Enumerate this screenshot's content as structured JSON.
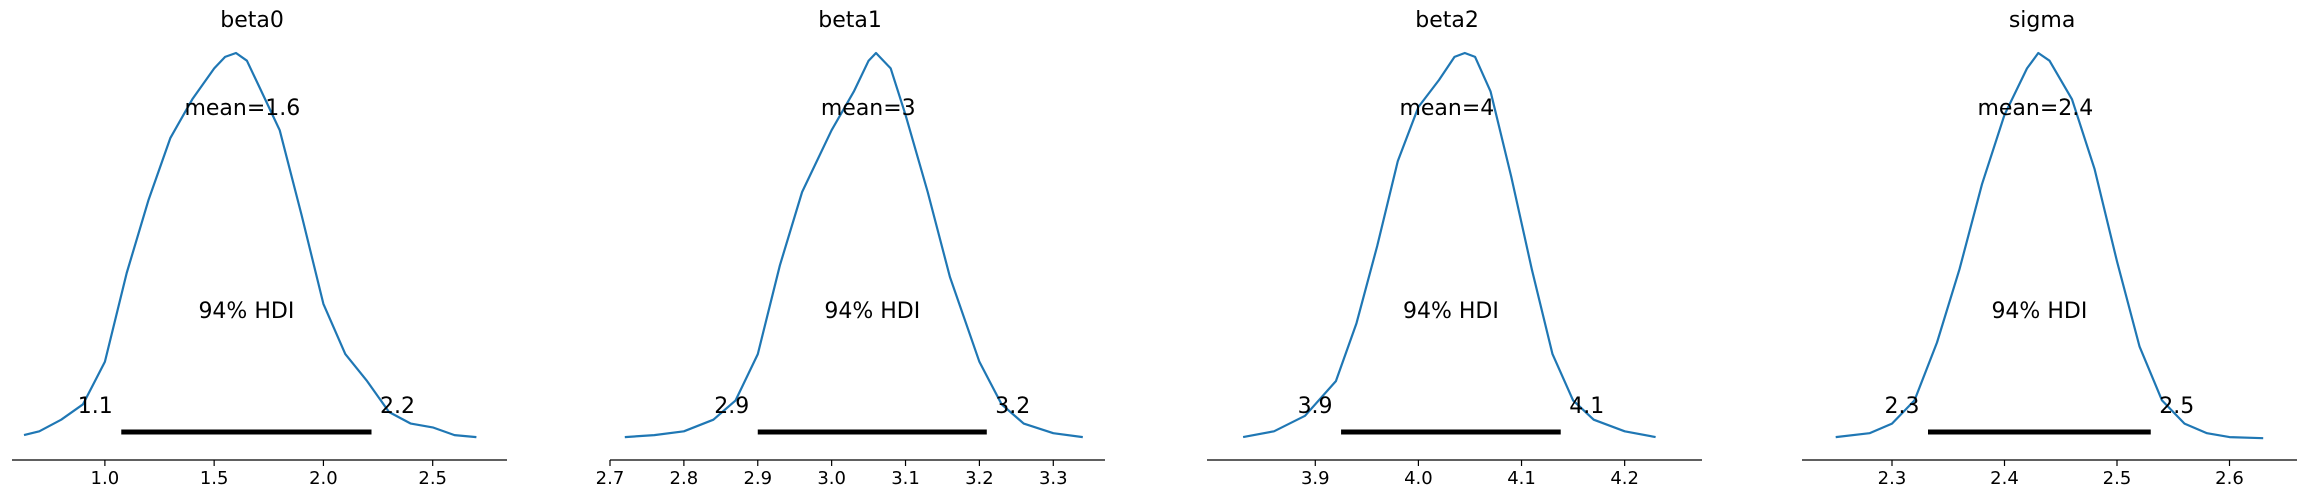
{
  "colors": {
    "kde": "#1f77b4",
    "hdi": "#000000",
    "axis": "#000000"
  },
  "chart_data": [
    {
      "type": "line",
      "title": "beta0",
      "mean_label": "mean=1.6",
      "hdi_label": "94% HDI",
      "hdi_low_label": "1.1",
      "hdi_high_label": "2.2",
      "hdi": [
        1.075,
        2.22
      ],
      "xlim": [
        0.575,
        2.84
      ],
      "xticks": [
        1.0,
        1.5,
        2.0,
        2.5
      ],
      "xtick_labels": [
        "1.0",
        "1.5",
        "2.0",
        "2.5"
      ],
      "density": {
        "x": [
          0.63,
          0.7,
          0.8,
          0.9,
          1.0,
          1.1,
          1.2,
          1.3,
          1.4,
          1.5,
          1.55,
          1.6,
          1.65,
          1.7,
          1.8,
          1.9,
          2.0,
          2.1,
          2.2,
          2.3,
          2.4,
          2.5,
          2.6,
          2.7
        ],
        "y": [
          0.01,
          0.02,
          0.05,
          0.09,
          0.2,
          0.43,
          0.62,
          0.78,
          0.88,
          0.96,
          0.99,
          1.0,
          0.98,
          0.92,
          0.8,
          0.58,
          0.35,
          0.22,
          0.15,
          0.07,
          0.04,
          0.03,
          0.01,
          0.005
        ]
      }
    },
    {
      "type": "line",
      "title": "beta1",
      "mean_label": "mean=3",
      "hdi_label": "94% HDI",
      "hdi_low_label": "2.9",
      "hdi_high_label": "3.2",
      "hdi": [
        2.9,
        3.21
      ],
      "xlim": [
        2.7,
        3.37
      ],
      "xticks": [
        2.7,
        2.8,
        2.9,
        3.0,
        3.1,
        3.2,
        3.3
      ],
      "xtick_labels": [
        "2.7",
        "2.8",
        "2.9",
        "3.0",
        "3.1",
        "3.2",
        "3.3"
      ],
      "density": {
        "x": [
          2.72,
          2.76,
          2.8,
          2.84,
          2.87,
          2.9,
          2.93,
          2.96,
          3.0,
          3.03,
          3.05,
          3.06,
          3.08,
          3.1,
          3.13,
          3.16,
          3.2,
          3.23,
          3.26,
          3.3,
          3.34
        ],
        "y": [
          0.005,
          0.01,
          0.02,
          0.05,
          0.1,
          0.22,
          0.45,
          0.64,
          0.8,
          0.9,
          0.98,
          1.0,
          0.96,
          0.84,
          0.64,
          0.42,
          0.2,
          0.09,
          0.04,
          0.015,
          0.005
        ]
      }
    },
    {
      "type": "line",
      "title": "beta2",
      "mean_label": "mean=4",
      "hdi_label": "94% HDI",
      "hdi_low_label": "3.9",
      "hdi_high_label": "4.1",
      "hdi": [
        3.925,
        4.138
      ],
      "xlim": [
        3.795,
        4.275
      ],
      "xticks": [
        3.9,
        4.0,
        4.1,
        4.2
      ],
      "xtick_labels": [
        "3.9",
        "4.0",
        "4.1",
        "4.2"
      ],
      "density": {
        "x": [
          3.83,
          3.86,
          3.89,
          3.92,
          3.94,
          3.96,
          3.98,
          4.0,
          4.02,
          4.035,
          4.045,
          4.055,
          4.07,
          4.09,
          4.11,
          4.13,
          4.15,
          4.17,
          4.2,
          4.23
        ],
        "y": [
          0.005,
          0.02,
          0.06,
          0.15,
          0.3,
          0.5,
          0.72,
          0.86,
          0.93,
          0.99,
          1.0,
          0.99,
          0.9,
          0.68,
          0.44,
          0.22,
          0.1,
          0.05,
          0.02,
          0.005
        ]
      }
    },
    {
      "type": "line",
      "title": "sigma",
      "mean_label": "mean=2.4",
      "hdi_label": "94% HDI",
      "hdi_low_label": "2.3",
      "hdi_high_label": "2.5",
      "hdi": [
        2.332,
        2.53
      ],
      "xlim": [
        2.22,
        2.66
      ],
      "xticks": [
        2.3,
        2.4,
        2.5,
        2.6
      ],
      "xtick_labels": [
        "2.3",
        "2.4",
        "2.5",
        "2.6"
      ],
      "density": {
        "x": [
          2.25,
          2.28,
          2.3,
          2.32,
          2.34,
          2.36,
          2.38,
          2.4,
          2.42,
          2.43,
          2.44,
          2.46,
          2.48,
          2.5,
          2.52,
          2.54,
          2.56,
          2.58,
          2.6,
          2.63
        ],
        "y": [
          0.005,
          0.015,
          0.04,
          0.1,
          0.25,
          0.44,
          0.66,
          0.84,
          0.96,
          1.0,
          0.98,
          0.88,
          0.7,
          0.46,
          0.24,
          0.1,
          0.04,
          0.015,
          0.005,
          0.002
        ]
      }
    }
  ]
}
